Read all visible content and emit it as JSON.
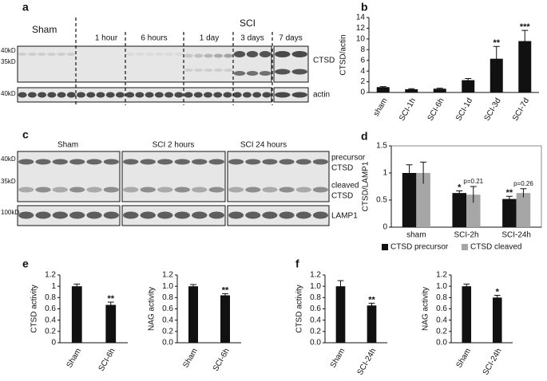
{
  "panel_labels": [
    "a",
    "b",
    "c",
    "d",
    "e",
    "f"
  ],
  "blot_a": {
    "groups": [
      "Sham",
      "SCI"
    ],
    "timepoints": [
      "1 hour",
      "6 hours",
      "1 day",
      "3 days",
      "7 days"
    ],
    "bands": [
      "CTSD",
      "actin"
    ],
    "markers": [
      "40kD",
      "35kD",
      "40kD"
    ]
  },
  "blot_c": {
    "groups": [
      "Sham",
      "SCI 2 hours",
      "SCI 24 hours"
    ],
    "bands": [
      "precursor",
      "CTSD",
      "cleaved",
      "CTSD",
      "LAMP1"
    ],
    "markers": [
      "40kD",
      "35kD",
      "100kD"
    ]
  },
  "chart_data": [
    {
      "type": "bar",
      "ylabel": "CTSD/actin",
      "categories": [
        "sham",
        "SCI-1h",
        "SCI-6h",
        "SCI-1d",
        "SCI-3d",
        "SCI-7d"
      ],
      "values": [
        1,
        0.6,
        0.7,
        2.3,
        6.3,
        9.6
      ],
      "errors": [
        0.1,
        0.1,
        0.1,
        0.3,
        2.3,
        2.0
      ],
      "color": "#111111",
      "ylim": [
        0,
        14
      ],
      "yticks": [
        0,
        2,
        4,
        6,
        8,
        10,
        12,
        14
      ],
      "annotations": [
        "**",
        "***"
      ]
    },
    {
      "type": "bar",
      "ylabel": "CTSD/LAMP1",
      "categories": [
        "sham",
        "SCI-2h",
        "SCI-24h"
      ],
      "series": [
        {
          "name": "CTSD precursor",
          "color": "#111111",
          "values": [
            1,
            0.63,
            0.52
          ],
          "errors": [
            0.15,
            0.04,
            0.05
          ]
        },
        {
          "name": "CTSD cleaved",
          "color": "#a6a6a6",
          "values": [
            1,
            0.6,
            0.63
          ],
          "errors": [
            0.2,
            0.15,
            0.08
          ]
        }
      ],
      "ylim": [
        0,
        1.5
      ],
      "yticks": [
        0,
        0.5,
        1,
        1.5
      ],
      "annotations": [
        "*",
        "p=0.21",
        "**",
        "p=0.26"
      ]
    },
    {
      "type": "bar",
      "ylabel": "CTSD activity",
      "categories": [
        "Sham",
        "SCI-6h"
      ],
      "values": [
        1,
        0.67
      ],
      "errors": [
        0.04,
        0.05
      ],
      "color": "#111111",
      "ylim": [
        0,
        1.2
      ],
      "yticks": [
        0,
        0.2,
        0.4,
        0.6,
        0.8,
        1,
        1.2
      ],
      "annotations": [
        "**"
      ]
    },
    {
      "type": "bar",
      "ylabel": "NAG activity",
      "categories": [
        "Sham",
        "SCI-6h"
      ],
      "values": [
        1,
        0.84
      ],
      "errors": [
        0.03,
        0.03
      ],
      "color": "#111111",
      "ylim": [
        0,
        1.2
      ],
      "yticks": [
        {
          "value": 0,
          "label": "0.0"
        },
        0.2,
        0.4,
        0.6,
        0.8,
        {
          "value": 1,
          "label": "1.0"
        },
        1.2
      ],
      "annotations": [
        "**"
      ]
    },
    {
      "type": "bar",
      "ylabel": "CTSD activity",
      "categories": [
        "Sham",
        "SCI-24h"
      ],
      "values": [
        1,
        0.66
      ],
      "errors": [
        0.1,
        0.04
      ],
      "color": "#111111",
      "ylim": [
        0,
        1.2
      ],
      "yticks": [
        {
          "value": 0,
          "label": "0.0"
        },
        0.2,
        0.4,
        0.6,
        0.8,
        {
          "value": 1,
          "label": "1.0"
        },
        1.2
      ],
      "annotations": [
        "**"
      ]
    },
    {
      "type": "bar",
      "ylabel": "NAG activity",
      "categories": [
        "Sham",
        "SCI-24h"
      ],
      "values": [
        1,
        0.8
      ],
      "errors": [
        0.04,
        0.04
      ],
      "color": "#111111",
      "ylim": [
        0,
        1.2
      ],
      "yticks": [
        {
          "value": 0,
          "label": "0.0"
        },
        0.2,
        0.4,
        0.6,
        0.8,
        {
          "value": 1,
          "label": "1.0"
        },
        1.2
      ],
      "annotations": [
        "*"
      ]
    }
  ]
}
